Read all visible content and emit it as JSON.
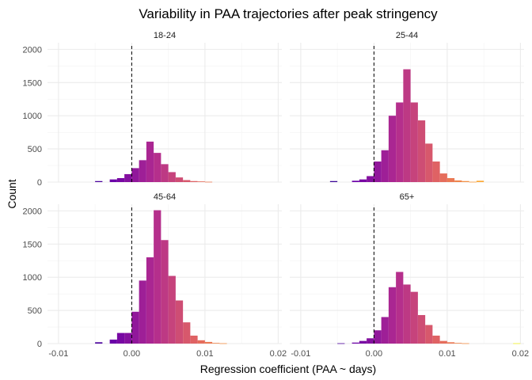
{
  "chart_data": {
    "type": "bar",
    "title": "Variability in PAA trajectories after peak stringency",
    "xlabel": "Regression coefficient (PAA ~ days)",
    "ylabel": "Count",
    "xlim": [
      -0.0115,
      0.0205
    ],
    "ylim": [
      0,
      2100
    ],
    "x_ticks": [
      -0.01,
      0.0,
      0.01,
      0.02
    ],
    "x_tick_labels": [
      "-0.01",
      "0.00",
      "0.01",
      "0.02"
    ],
    "y_ticks": [
      0,
      500,
      1000,
      1500,
      2000
    ],
    "y_tick_labels": [
      "0",
      "500",
      "1000",
      "1500",
      "2000"
    ],
    "reference_line_x": 0,
    "grid": true,
    "bin_width": 0.001,
    "bin_starts": [
      -0.006,
      -0.005,
      -0.004,
      -0.003,
      -0.002,
      -0.001,
      0.0,
      0.001,
      0.002,
      0.003,
      0.004,
      0.005,
      0.006,
      0.007,
      0.008,
      0.009,
      0.01,
      0.011,
      0.012,
      0.013,
      0.014,
      0.015,
      0.016,
      0.017,
      0.018,
      0.019
    ],
    "fill_gradient": [
      "#0d0887",
      "#6a00a8",
      "#b12a90",
      "#e16462",
      "#fca636",
      "#f0f921"
    ],
    "panels": [
      {
        "label": "18-24",
        "values": [
          0,
          15,
          0,
          40,
          60,
          120,
          210,
          330,
          610,
          440,
          270,
          150,
          70,
          30,
          15,
          10,
          5,
          0,
          0,
          0,
          0,
          0,
          0,
          0,
          0,
          0
        ]
      },
      {
        "label": "25-44",
        "values": [
          15,
          0,
          0,
          20,
          40,
          90,
          310,
          480,
          1000,
          1200,
          1700,
          1200,
          930,
          580,
          310,
          130,
          60,
          25,
          15,
          5,
          20,
          0,
          0,
          0,
          0,
          0
        ]
      },
      {
        "label": "45-64",
        "values": [
          0,
          20,
          0,
          60,
          160,
          160,
          480,
          950,
          1300,
          2010,
          1560,
          1020,
          650,
          320,
          120,
          50,
          25,
          10,
          5,
          0,
          0,
          0,
          0,
          0,
          0,
          0
        ]
      },
      {
        "label": "65+",
        "values": [
          0,
          5,
          0,
          15,
          40,
          80,
          200,
          400,
          850,
          1080,
          890,
          780,
          430,
          280,
          120,
          40,
          20,
          10,
          5,
          0,
          0,
          0,
          0,
          0,
          0,
          5
        ]
      }
    ]
  }
}
